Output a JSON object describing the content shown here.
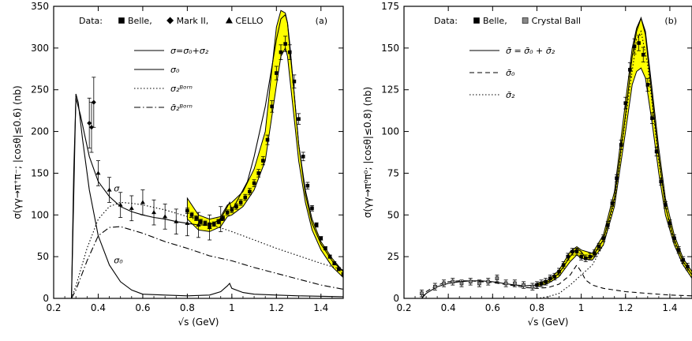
{
  "chart_data": [
    {
      "type": "line",
      "panel_label": "(a)",
      "xlabel": "√s  (GeV)",
      "ylabel": "σ(γγ→π⁺π⁻; |cosθ|≤0.6)  (nb)",
      "xlim": [
        0.2,
        1.5
      ],
      "ylim": [
        0,
        350
      ],
      "x_ticks": [
        "0.2",
        "0.4",
        "0.6",
        "0.8",
        "1",
        "1.2",
        "1.4"
      ],
      "y_ticks": [
        "0",
        "50",
        "100",
        "150",
        "200",
        "250",
        "300",
        "350"
      ],
      "data_header": "Data:",
      "data_legend": [
        {
          "marker": "square",
          "label": "Belle,"
        },
        {
          "marker": "diamond",
          "label": "Mark II,"
        },
        {
          "marker": "triangle",
          "label": "CELLO"
        }
      ],
      "curve_legend": [
        {
          "style": "solid",
          "label": "σ=σ₀+σ₂"
        },
        {
          "style": "solid",
          "label": "σ₀"
        },
        {
          "style": "dotted",
          "label": "σ₂ᴮᵒʳⁿ"
        },
        {
          "style": "dashdot",
          "label": "σ̄₂ᴮᵒʳⁿ"
        }
      ],
      "annotations": [
        {
          "text": "σ",
          "x": 0.47,
          "y": 128
        },
        {
          "text": "σ₀",
          "x": 0.47,
          "y": 42
        }
      ],
      "series": [
        {
          "style": "solid",
          "x": [
            0.28,
            0.29,
            0.3,
            0.32,
            0.34,
            0.36,
            0.4,
            0.45,
            0.5,
            0.55,
            0.6,
            0.65,
            0.7,
            0.75,
            0.8,
            0.85,
            0.9,
            0.95,
            0.98,
            0.99,
            1.0,
            1.03,
            1.07,
            1.1,
            1.15,
            1.2,
            1.22,
            1.24,
            1.25,
            1.26,
            1.28,
            1.3,
            1.33,
            1.36,
            1.4,
            1.45,
            1.5
          ],
          "y": [
            0,
            150,
            240,
            220,
            195,
            170,
            140,
            122,
            110,
            104,
            100,
            97,
            95,
            92,
            90,
            88,
            88,
            95,
            110,
            115,
            105,
            120,
            140,
            170,
            230,
            310,
            335,
            340,
            330,
            305,
            245,
            185,
            125,
            90,
            65,
            45,
            32
          ]
        },
        {
          "style": "solid",
          "x": [
            0.28,
            0.29,
            0.3,
            0.31,
            0.33,
            0.36,
            0.4,
            0.45,
            0.5,
            0.55,
            0.6,
            0.7,
            0.8,
            0.9,
            0.95,
            0.98,
            0.99,
            1.0,
            1.05,
            1.1,
            1.2,
            1.3,
            1.5
          ],
          "y": [
            0,
            120,
            245,
            235,
            190,
            130,
            75,
            40,
            20,
            10,
            5,
            4,
            3,
            4,
            8,
            15,
            18,
            12,
            7,
            5,
            4,
            3,
            2
          ]
        },
        {
          "style": "dotted",
          "x": [
            0.28,
            0.3,
            0.35,
            0.4,
            0.45,
            0.5,
            0.55,
            0.6,
            0.7,
            0.8,
            0.9,
            1.0,
            1.1,
            1.2,
            1.3,
            1.4,
            1.5
          ],
          "y": [
            0,
            15,
            60,
            95,
            110,
            115,
            114,
            112,
            106,
            98,
            89,
            80,
            70,
            60,
            51,
            42,
            34
          ]
        },
        {
          "style": "dashdot",
          "x": [
            0.28,
            0.3,
            0.35,
            0.4,
            0.45,
            0.5,
            0.55,
            0.6,
            0.7,
            0.8,
            0.9,
            1.0,
            1.1,
            1.2,
            1.3,
            1.4,
            1.5
          ],
          "y": [
            0,
            10,
            45,
            75,
            85,
            86,
            82,
            78,
            68,
            60,
            51,
            45,
            37,
            30,
            23,
            16,
            11
          ]
        }
      ],
      "band": {
        "x": [
          0.8,
          0.85,
          0.9,
          0.95,
          0.98,
          1.0,
          1.05,
          1.1,
          1.15,
          1.2,
          1.22,
          1.24,
          1.25,
          1.26,
          1.28,
          1.3,
          1.33,
          1.36,
          1.4,
          1.45,
          1.5
        ],
        "low": [
          95,
          82,
          80,
          86,
          98,
          100,
          110,
          130,
          165,
          255,
          290,
          300,
          290,
          265,
          215,
          165,
          115,
          82,
          58,
          38,
          25
        ],
        "high": [
          120,
          100,
          95,
          98,
          112,
          115,
          128,
          155,
          200,
          325,
          345,
          342,
          330,
          300,
          245,
          185,
          130,
          95,
          68,
          48,
          32
        ]
      },
      "markers": [
        {
          "marker": "square",
          "x": [
            0.8,
            0.82,
            0.84,
            0.86,
            0.88,
            0.9,
            0.92,
            0.94,
            0.96,
            0.98,
            1.0,
            1.02,
            1.04,
            1.06,
            1.08,
            1.1,
            1.12,
            1.14,
            1.16,
            1.18,
            1.2,
            1.22,
            1.24,
            1.26,
            1.28,
            1.3,
            1.32,
            1.34,
            1.36,
            1.38,
            1.4,
            1.42,
            1.44,
            1.46,
            1.48,
            1.5
          ],
          "y": [
            105,
            100,
            96,
            92,
            90,
            88,
            89,
            92,
            96,
            103,
            106,
            110,
            115,
            121,
            128,
            138,
            150,
            165,
            190,
            230,
            270,
            295,
            305,
            295,
            260,
            215,
            170,
            135,
            108,
            88,
            72,
            60,
            50,
            42,
            35,
            29
          ]
        },
        {
          "marker": "diamond",
          "x": [
            0.36,
            0.37,
            0.38
          ],
          "y": [
            210,
            205,
            235
          ]
        },
        {
          "marker": "triangle",
          "x": [
            0.4,
            0.45,
            0.5,
            0.55,
            0.6,
            0.65,
            0.7,
            0.75,
            0.8,
            0.85,
            0.9,
            0.95
          ],
          "y": [
            150,
            130,
            112,
            108,
            115,
            103,
            98,
            92,
            90,
            88,
            85,
            95
          ]
        }
      ]
    },
    {
      "type": "line",
      "panel_label": "(b)",
      "xlabel": "√s  (GeV)",
      "ylabel": "σ(γγ→π⁰π⁰; |cosθ|≤0.8)  (nb)",
      "xlim": [
        0.2,
        1.5
      ],
      "ylim": [
        0,
        175
      ],
      "x_ticks": [
        "0.2",
        "0.4",
        "0.6",
        "0.8",
        "1",
        "1.2",
        "1.4"
      ],
      "y_ticks": [
        "0",
        "25",
        "50",
        "75",
        "100",
        "125",
        "150",
        "175"
      ],
      "data_header": "Data:",
      "data_legend": [
        {
          "marker": "square",
          "label": "Belle,"
        },
        {
          "marker": "greysquare",
          "label": "Crystal Ball"
        }
      ],
      "curve_legend": [
        {
          "style": "solid",
          "label": "σ̄ = σ̄₀ + σ̄₂"
        },
        {
          "style": "dashed",
          "label": "σ̄₀"
        },
        {
          "style": "dotted",
          "label": "σ̄₂"
        }
      ],
      "series": [
        {
          "style": "solid",
          "x": [
            0.28,
            0.3,
            0.35,
            0.4,
            0.45,
            0.5,
            0.55,
            0.6,
            0.65,
            0.7,
            0.75,
            0.8,
            0.85,
            0.9,
            0.95,
            0.98,
            1.0,
            1.02,
            1.05,
            1.1,
            1.15,
            1.2,
            1.23,
            1.25,
            1.27,
            1.29,
            1.32,
            1.35,
            1.38,
            1.42,
            1.46,
            1.5
          ],
          "y": [
            0,
            3,
            7,
            9,
            10,
            10.5,
            10.5,
            10,
            9,
            8,
            7.5,
            8,
            10,
            15,
            25,
            30,
            28,
            24,
            25,
            35,
            60,
            110,
            145,
            160,
            168,
            158,
            120,
            85,
            55,
            35,
            22,
            14
          ]
        },
        {
          "style": "dashed",
          "x": [
            0.28,
            0.3,
            0.35,
            0.4,
            0.45,
            0.5,
            0.55,
            0.6,
            0.65,
            0.7,
            0.75,
            0.8,
            0.85,
            0.9,
            0.95,
            0.98,
            1.0,
            1.02,
            1.05,
            1.1,
            1.2,
            1.3,
            1.4,
            1.5
          ],
          "y": [
            0,
            4,
            8,
            10,
            10.5,
            10.5,
            10,
            9.5,
            8.5,
            7.5,
            6.5,
            6,
            6.5,
            8.5,
            14,
            20,
            16,
            11,
            8,
            6,
            4,
            3,
            2,
            1.5
          ]
        },
        {
          "style": "dotted",
          "x": [
            0.8,
            0.85,
            0.9,
            0.95,
            1.0,
            1.05,
            1.1,
            1.15,
            1.2,
            1.25,
            1.27,
            1.3,
            1.35,
            1.4,
            1.45,
            1.5
          ],
          "y": [
            0,
            1,
            3,
            8,
            14,
            20,
            32,
            58,
            108,
            155,
            160,
            140,
            82,
            42,
            22,
            12
          ]
        }
      ],
      "band": {
        "x": [
          0.8,
          0.85,
          0.9,
          0.95,
          0.98,
          1.0,
          1.05,
          1.1,
          1.15,
          1.2,
          1.23,
          1.25,
          1.27,
          1.29,
          1.32,
          1.35,
          1.38,
          1.42,
          1.46,
          1.5
        ],
        "low": [
          7,
          9,
          13,
          22,
          26,
          24,
          23,
          32,
          55,
          100,
          128,
          136,
          138,
          132,
          105,
          75,
          50,
          32,
          20,
          12
        ],
        "high": [
          9,
          11,
          17,
          28,
          31,
          29,
          27,
          38,
          64,
          118,
          150,
          162,
          168,
          160,
          125,
          90,
          60,
          38,
          24,
          16
        ]
      },
      "markers": [
        {
          "marker": "square",
          "x": [
            0.8,
            0.82,
            0.84,
            0.86,
            0.88,
            0.9,
            0.92,
            0.94,
            0.96,
            0.98,
            1.0,
            1.02,
            1.04,
            1.06,
            1.08,
            1.1,
            1.12,
            1.14,
            1.16,
            1.18,
            1.2,
            1.22,
            1.24,
            1.26,
            1.28,
            1.3,
            1.32,
            1.34,
            1.36,
            1.38,
            1.4,
            1.42,
            1.44,
            1.46,
            1.48
          ],
          "y": [
            8,
            9,
            10,
            12,
            13,
            16,
            20,
            25,
            28,
            28,
            25,
            24,
            25,
            27,
            31,
            36,
            44,
            57,
            72,
            92,
            117,
            137,
            151,
            153,
            146,
            128,
            108,
            88,
            70,
            56,
            45,
            36,
            29,
            23,
            19
          ]
        },
        {
          "marker": "greysquare",
          "x": [
            0.28,
            0.34,
            0.38,
            0.42,
            0.46,
            0.5,
            0.54,
            0.58,
            0.62,
            0.66,
            0.7,
            0.74,
            0.78
          ],
          "y": [
            3,
            7,
            9,
            10,
            9,
            10,
            9,
            10,
            12,
            9,
            9,
            8,
            7
          ]
        }
      ]
    }
  ]
}
